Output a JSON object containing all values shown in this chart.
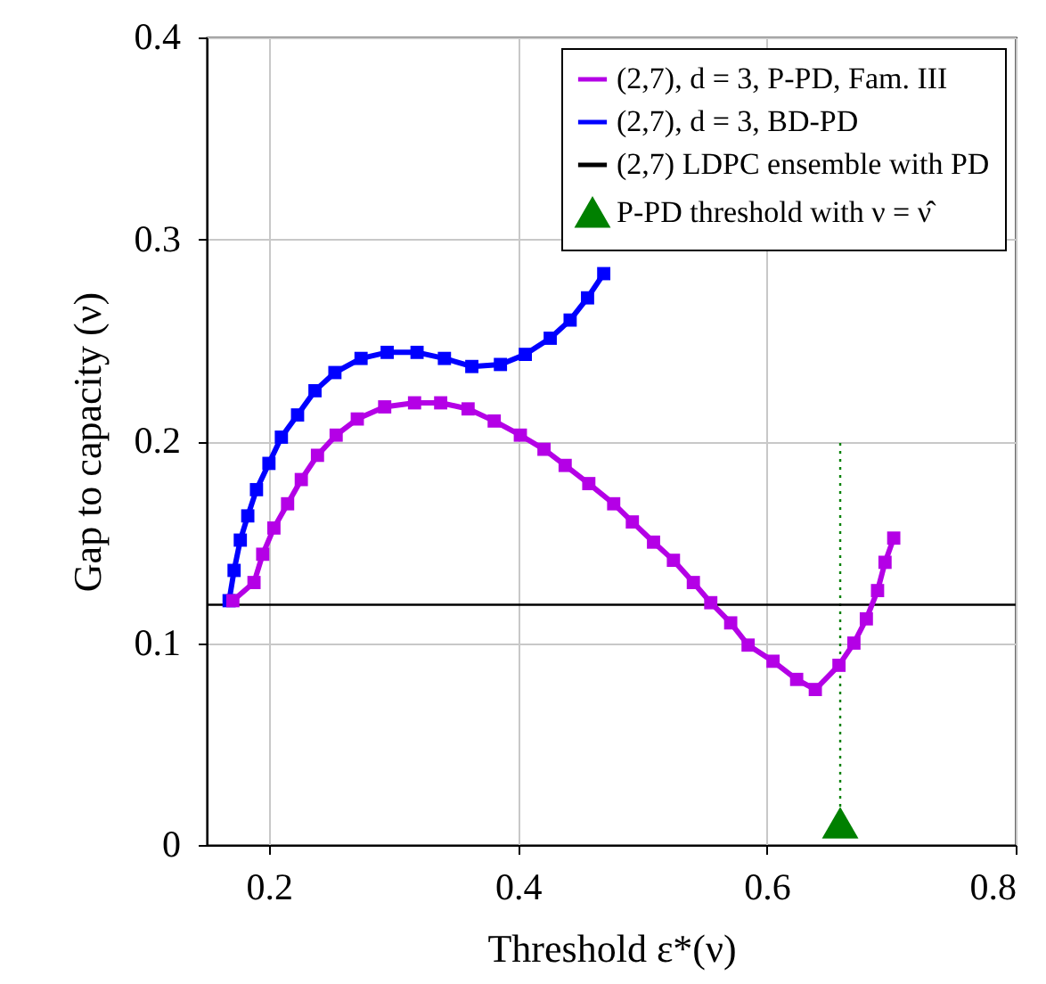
{
  "chart_data": {
    "type": "line",
    "xlabel": "Threshold ε*(ν)",
    "ylabel": "Gap to capacity (ν)",
    "xlim": [
      0.15,
      0.8
    ],
    "xticks": [
      0.2,
      0.4,
      0.6,
      0.8
    ],
    "ylim": [
      0,
      0.4
    ],
    "yticks": [
      0,
      0.1,
      0.2,
      0.3,
      0.4
    ],
    "grid": true,
    "legend": "top right",
    "series": [
      {
        "name": "(2,7), d = 3, P-PD, Fam. III",
        "type": "line",
        "color": "#b400e6",
        "marker": "square",
        "x": [
          0.171,
          0.188,
          0.195,
          0.204,
          0.215,
          0.226,
          0.239,
          0.254,
          0.271,
          0.293,
          0.317,
          0.338,
          0.36,
          0.381,
          0.402,
          0.421,
          0.438,
          0.457,
          0.477,
          0.492,
          0.509,
          0.525,
          0.541,
          0.555,
          0.571,
          0.585,
          0.605,
          0.624,
          0.639,
          0.658,
          0.67,
          0.68,
          0.689,
          0.695,
          0.702
        ],
        "values": [
          0.121,
          0.13,
          0.144,
          0.157,
          0.169,
          0.181,
          0.193,
          0.203,
          0.211,
          0.217,
          0.219,
          0.219,
          0.216,
          0.21,
          0.203,
          0.196,
          0.188,
          0.179,
          0.169,
          0.16,
          0.15,
          0.141,
          0.13,
          0.12,
          0.11,
          0.099,
          0.091,
          0.082,
          0.077,
          0.089,
          0.1,
          0.112,
          0.126,
          0.14,
          0.152
        ]
      },
      {
        "name": "(2,7), d = 3, BD-PD",
        "type": "line",
        "color": "#0000ff",
        "marker": "square",
        "x": [
          0.168,
          0.172,
          0.177,
          0.183,
          0.19,
          0.2,
          0.21,
          0.223,
          0.237,
          0.253,
          0.274,
          0.295,
          0.319,
          0.341,
          0.363,
          0.386,
          0.406,
          0.426,
          0.442,
          0.456,
          0.469
        ],
        "values": [
          0.121,
          0.136,
          0.151,
          0.163,
          0.176,
          0.189,
          0.202,
          0.213,
          0.225,
          0.234,
          0.241,
          0.244,
          0.244,
          0.241,
          0.237,
          0.238,
          0.243,
          0.251,
          0.26,
          0.271,
          0.283
        ]
      },
      {
        "name": "(2,7) LDPC ensemble with PD",
        "type": "line",
        "color": "#000000",
        "x": [
          0.15,
          0.8
        ],
        "values": [
          0.119,
          0.119
        ]
      },
      {
        "name": "P-PD threshold with ν = ν̂",
        "type": "scatter",
        "color": "#008000",
        "marker": "triangle",
        "x": [
          0.659
        ],
        "values": [
          0.011
        ]
      },
      {
        "type": "line",
        "color": "#008000",
        "line_style": "dotted",
        "x": [
          0.659,
          0.659
        ],
        "values": [
          0.011,
          0.2
        ]
      }
    ]
  }
}
